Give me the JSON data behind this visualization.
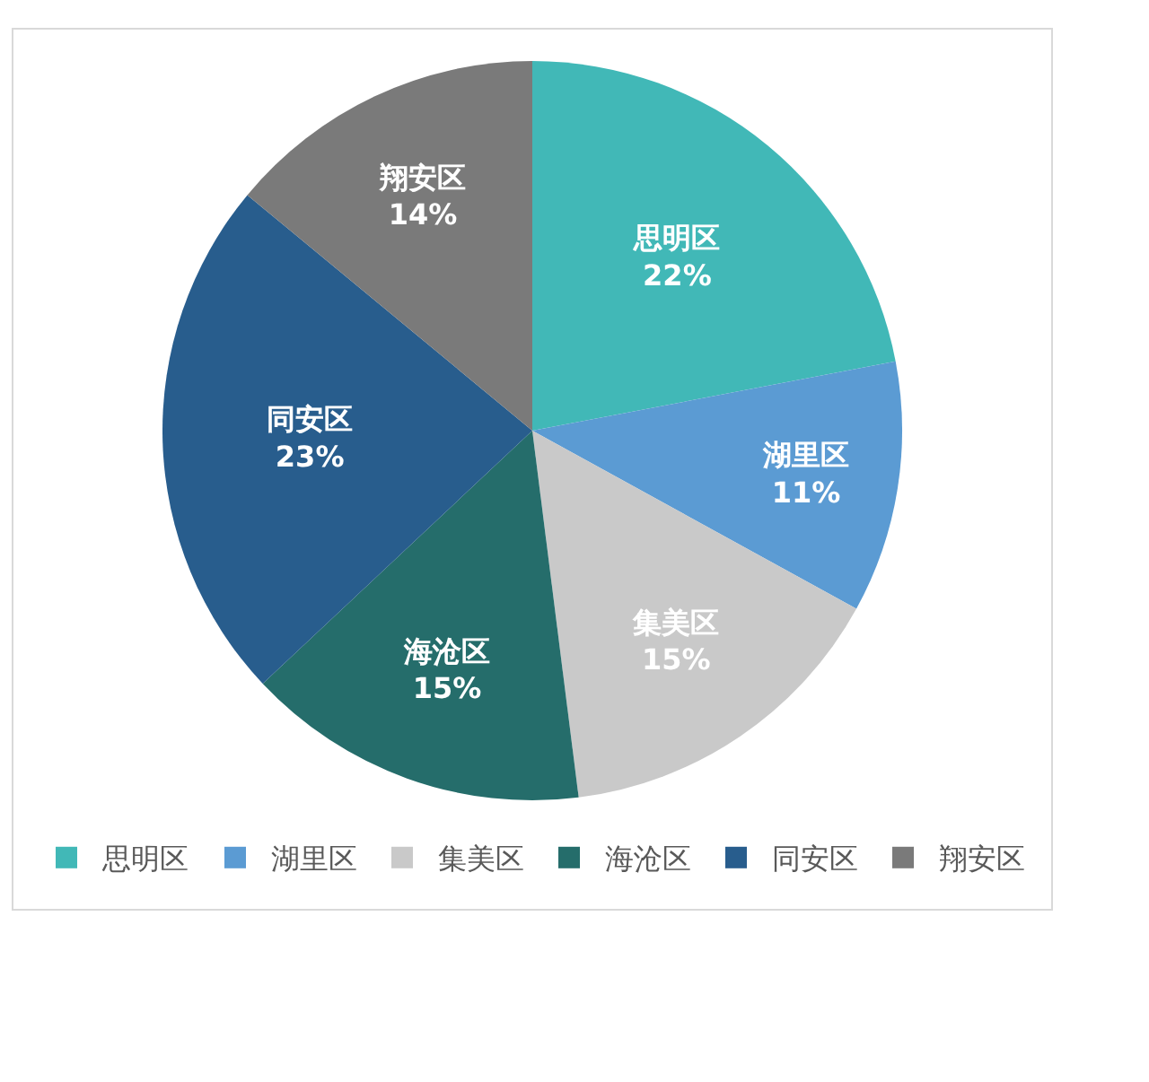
{
  "chart_data": {
    "type": "pie",
    "categories": [
      "思明区",
      "湖里区",
      "集美区",
      "海沧区",
      "同安区",
      "翔安区"
    ],
    "values": [
      22,
      11,
      15,
      15,
      23,
      14
    ],
    "colors": [
      "#41b8b7",
      "#5b9bd3",
      "#c9c9c9",
      "#256d6b",
      "#285d8d",
      "#7a7a7a"
    ],
    "value_labels": [
      "22%",
      "11%",
      "15%",
      "15%",
      "23%",
      "14%"
    ],
    "legend": "bottom"
  }
}
